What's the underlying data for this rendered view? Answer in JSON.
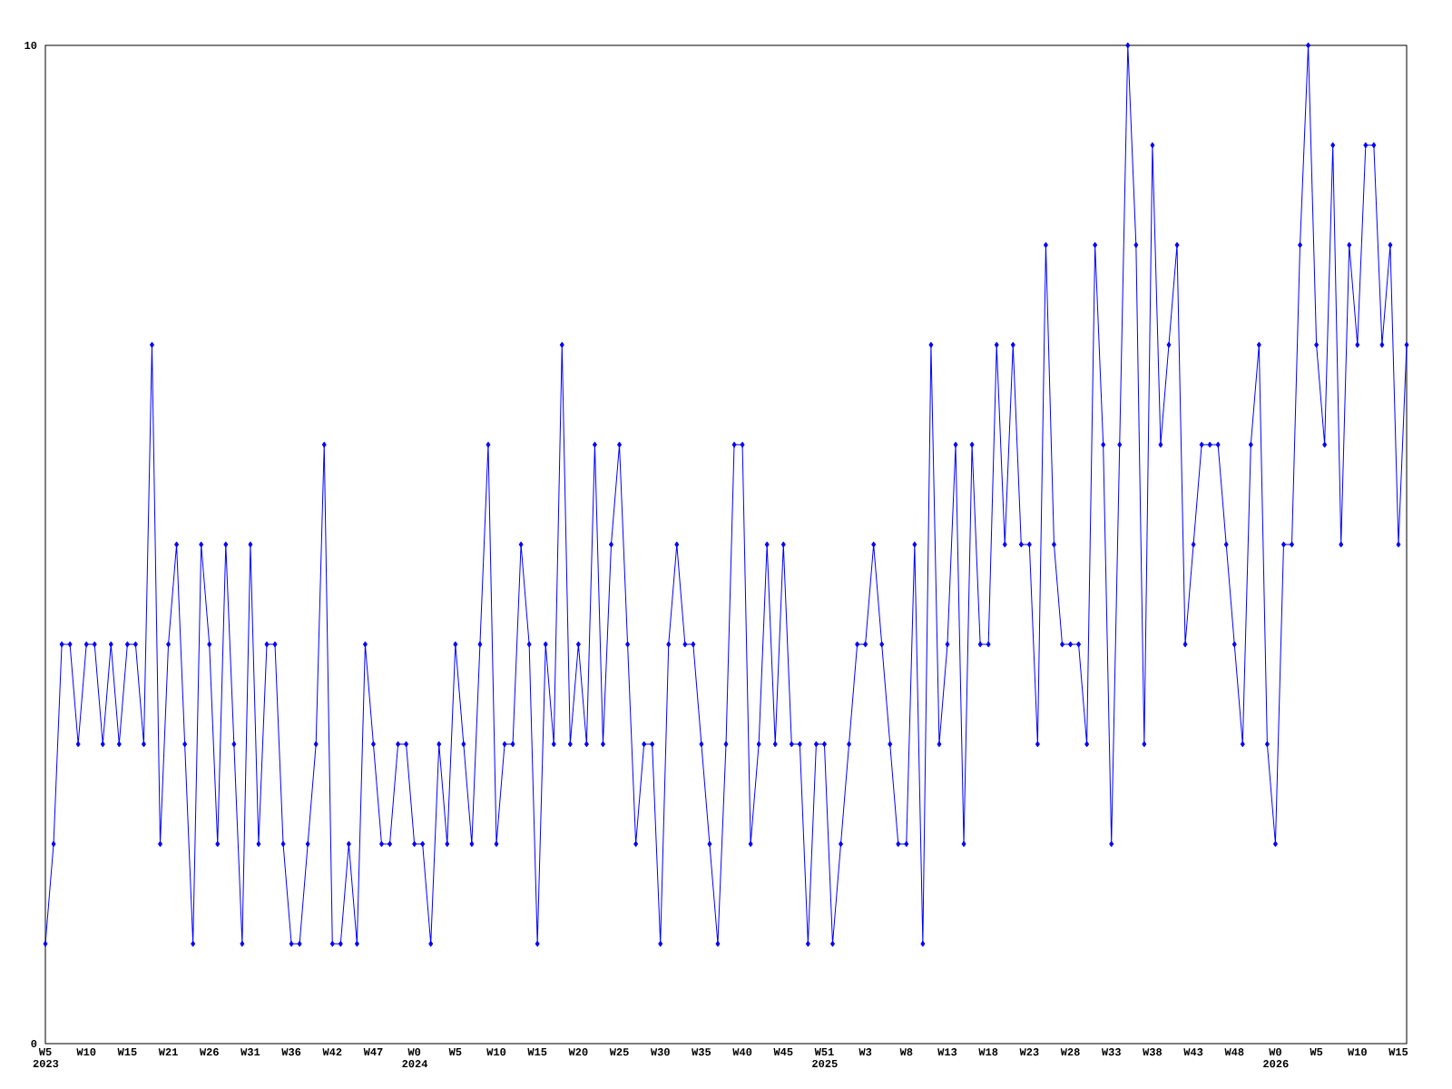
{
  "chart_data": {
    "type": "line",
    "categories": [
      "W5 2023",
      null,
      null,
      null,
      null,
      "W10",
      null,
      null,
      null,
      null,
      "W15",
      null,
      null,
      null,
      null,
      "W21",
      null,
      null,
      null,
      null,
      "W26",
      null,
      null,
      null,
      null,
      "W31",
      null,
      null,
      null,
      null,
      "W36",
      null,
      null,
      null,
      null,
      "W42",
      null,
      null,
      null,
      null,
      "W47",
      null,
      null,
      null,
      null,
      "W0 2024",
      null,
      null,
      null,
      null,
      "W5",
      null,
      null,
      null,
      null,
      "W10",
      null,
      null,
      null,
      null,
      "W15",
      null,
      null,
      null,
      null,
      "W20",
      null,
      null,
      null,
      null,
      "W25",
      null,
      null,
      null,
      null,
      "W30",
      null,
      null,
      null,
      null,
      "W35",
      null,
      null,
      null,
      null,
      "W40",
      null,
      null,
      null,
      null,
      "W45",
      null,
      null,
      null,
      null,
      "W51 2025",
      null,
      null,
      null,
      null,
      "W3",
      null,
      null,
      null,
      null,
      "W8",
      null,
      null,
      null,
      null,
      "W13",
      null,
      null,
      null,
      null,
      "W18",
      null,
      null,
      null,
      null,
      "W23",
      null,
      null,
      null,
      null,
      "W28",
      null,
      null,
      null,
      null,
      "W33",
      null,
      null,
      null,
      null,
      "W38",
      null,
      null,
      null,
      null,
      "W43",
      null,
      null,
      null,
      null,
      "W48",
      null,
      null,
      null,
      null,
      "W0 2026",
      null,
      null,
      null,
      null,
      "W5",
      null,
      null,
      null,
      null,
      "W10",
      null,
      null,
      null,
      null,
      "W15",
      null
    ],
    "values": [
      1,
      2,
      4,
      4,
      3,
      4,
      4,
      3,
      4,
      3,
      4,
      4,
      3,
      7,
      2,
      4,
      5,
      3,
      1,
      5,
      4,
      2,
      5,
      3,
      1,
      5,
      2,
      4,
      4,
      2,
      1,
      1,
      2,
      3,
      6,
      1,
      1,
      2,
      1,
      4,
      3,
      2,
      2,
      3,
      3,
      2,
      2,
      1,
      3,
      2,
      4,
      3,
      2,
      4,
      6,
      2,
      3,
      3,
      5,
      4,
      1,
      4,
      3,
      7,
      3,
      4,
      3,
      6,
      3,
      5,
      6,
      4,
      2,
      3,
      3,
      1,
      4,
      5,
      4,
      4,
      3,
      2,
      1,
      3,
      6,
      6,
      2,
      3,
      5,
      3,
      5,
      3,
      3,
      1,
      3,
      3,
      1,
      2,
      3,
      4,
      4,
      5,
      4,
      3,
      2,
      2,
      5,
      1,
      7,
      3,
      4,
      6,
      2,
      6,
      4,
      4,
      7,
      5,
      7,
      5,
      5,
      3,
      8,
      5,
      4,
      4,
      4,
      3,
      8,
      6,
      2,
      6,
      10,
      8,
      3,
      9,
      6,
      7,
      8,
      4,
      5,
      6,
      6,
      6,
      5,
      4,
      3,
      6,
      7,
      3,
      2,
      5,
      5,
      8,
      10,
      7,
      6,
      9,
      5,
      8,
      7,
      9,
      9,
      7,
      8,
      5,
      7
    ],
    "color": "#0000ff",
    "marker": "diamond",
    "ylim": [
      0,
      10
    ],
    "yticks": [
      0,
      10
    ]
  }
}
